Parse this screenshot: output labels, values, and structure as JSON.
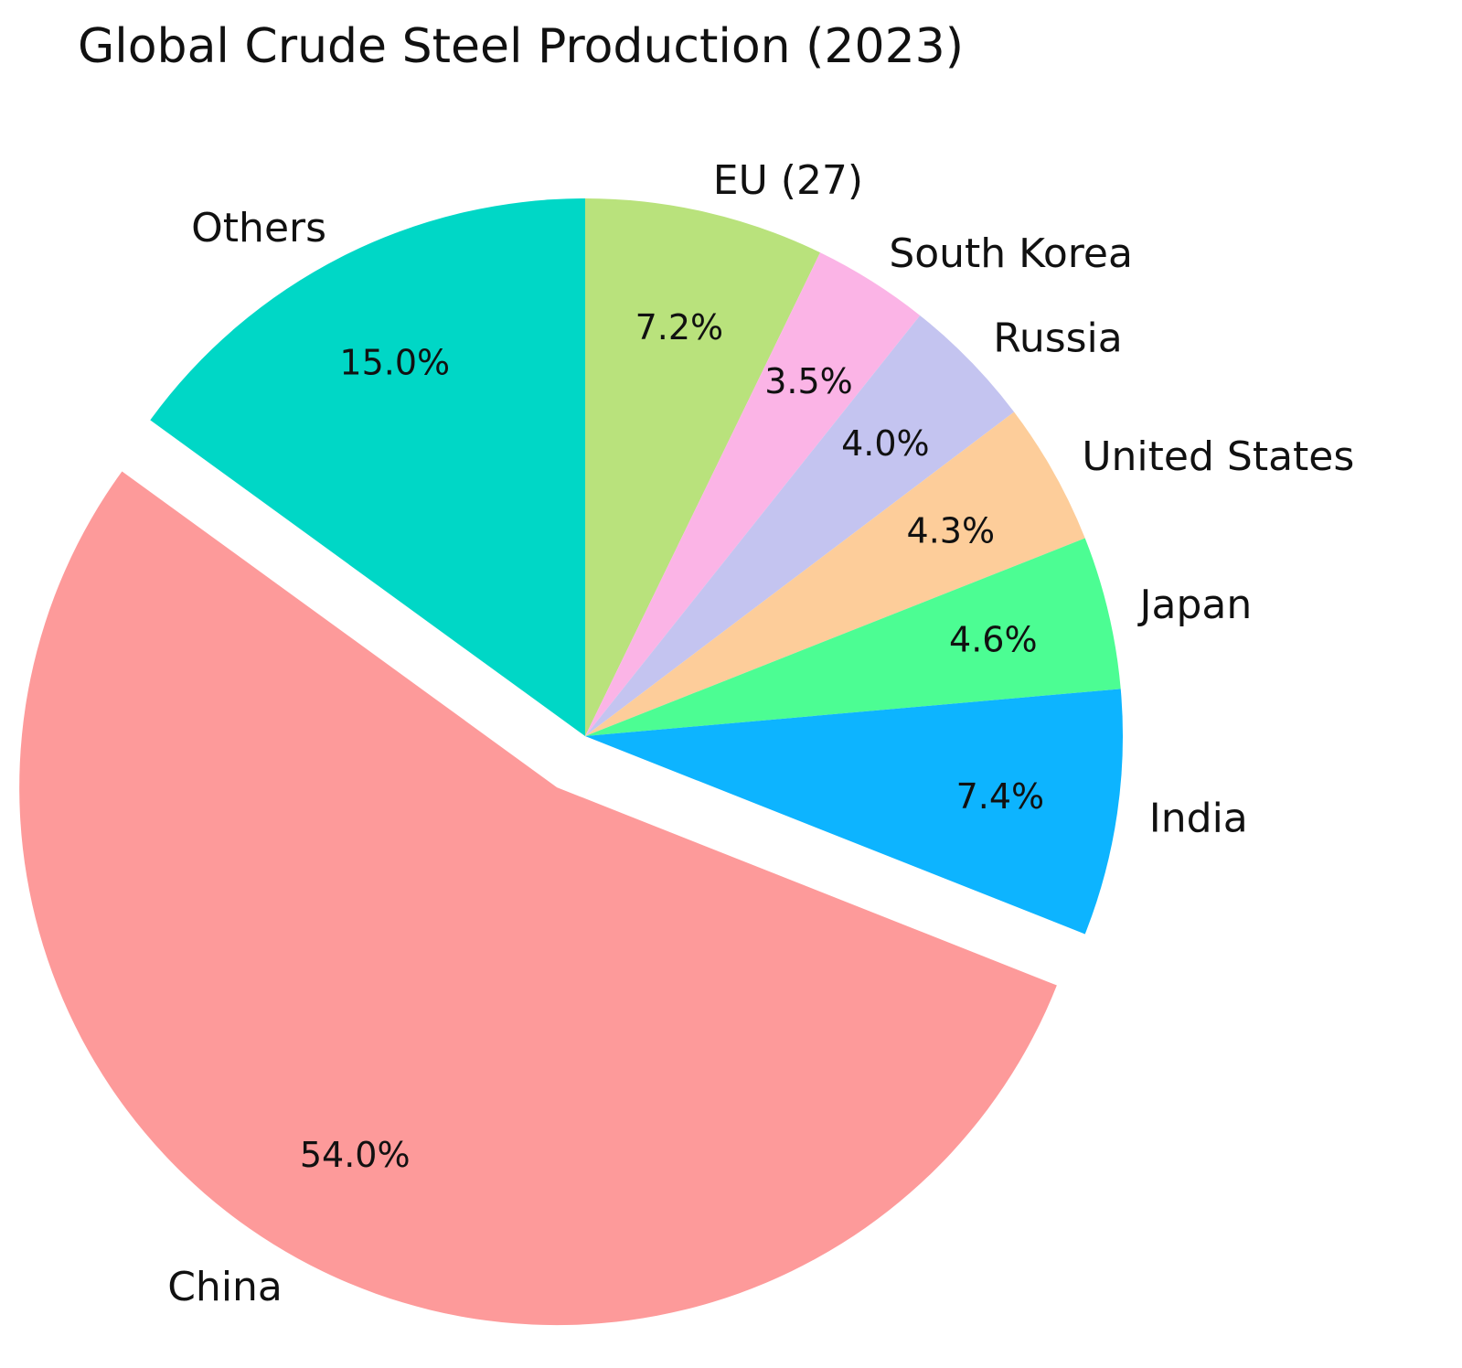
{
  "chart_data": {
    "type": "pie",
    "title": "Global Crude Steel Production (2023)",
    "start_angle_deg": 90,
    "direction": "clockwise",
    "explode": [
      "China"
    ],
    "slices": [
      {
        "label": "EU (27)",
        "value": 7.2,
        "pct_label": "7.2%",
        "color": "#b9e27c"
      },
      {
        "label": "South Korea",
        "value": 3.5,
        "pct_label": "3.5%",
        "color": "#fbb4e6"
      },
      {
        "label": "Russia",
        "value": 4.0,
        "pct_label": "4.0%",
        "color": "#c4c4f0"
      },
      {
        "label": "United States",
        "value": 4.3,
        "pct_label": "4.3%",
        "color": "#fdcd9a"
      },
      {
        "label": "Japan",
        "value": 4.6,
        "pct_label": "4.6%",
        "color": "#4cfd93"
      },
      {
        "label": "India",
        "value": 7.4,
        "pct_label": "7.4%",
        "color": "#0db4ff"
      },
      {
        "label": "China",
        "value": 54.0,
        "pct_label": "54.0%",
        "color": "#fd9a9a"
      },
      {
        "label": "Others",
        "value": 15.0,
        "pct_label": "15.0%",
        "color": "#00d7c6"
      }
    ]
  }
}
